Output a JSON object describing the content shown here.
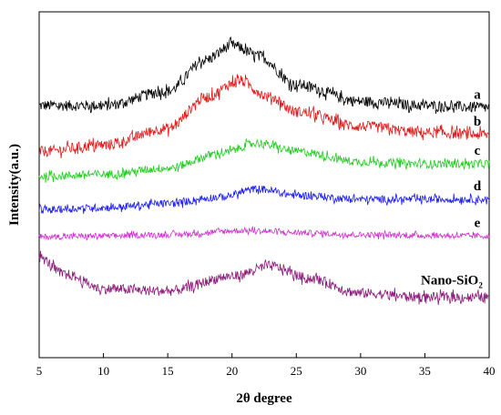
{
  "chart_data": {
    "type": "line",
    "xlabel": "2θ degree",
    "ylabel": "Intensity(a.u.)",
    "xlim": [
      5,
      40
    ],
    "x_ticks": [
      5,
      10,
      15,
      20,
      25,
      30,
      35,
      40
    ],
    "y_ticks_shown": false,
    "grid": false,
    "legend": "labels at right end of each curve",
    "series": [
      {
        "name": "a",
        "color": "#000000",
        "peak_center": 20.0,
        "profile": {
          "x": [
            5,
            10,
            15,
            18,
            20,
            22,
            25,
            30,
            35,
            40
          ],
          "y": [
            4.55,
            4.55,
            4.9,
            5.65,
            6.0,
            5.75,
            5.05,
            4.65,
            4.55,
            4.5
          ]
        }
      },
      {
        "name": "b",
        "color": "#e01b1b",
        "peak_center": 20.5,
        "profile": {
          "x": [
            5,
            10,
            15,
            18,
            20.5,
            23,
            25,
            30,
            35,
            40
          ],
          "y": [
            3.45,
            3.6,
            4.0,
            4.75,
            5.15,
            4.75,
            4.4,
            4.05,
            3.9,
            3.85
          ]
        }
      },
      {
        "name": "c",
        "color": "#22cc22",
        "peak_center": 22.0,
        "profile": {
          "x": [
            5,
            10,
            15,
            19,
            22,
            25,
            30,
            35,
            40
          ],
          "y": [
            2.85,
            2.9,
            3.05,
            3.4,
            3.65,
            3.45,
            3.2,
            3.15,
            3.15
          ]
        }
      },
      {
        "name": "d",
        "color": "#1a1aff",
        "peak_center": 22.0,
        "profile": {
          "x": [
            5,
            10,
            15,
            19,
            22,
            25,
            30,
            35,
            40
          ],
          "y": [
            2.05,
            2.1,
            2.2,
            2.35,
            2.55,
            2.4,
            2.3,
            2.3,
            2.3
          ]
        }
      },
      {
        "name": "e",
        "color": "#cc33cc",
        "peak_center": 21.0,
        "profile": {
          "x": [
            5,
            10,
            15,
            21,
            25,
            30,
            35,
            40
          ],
          "y": [
            1.4,
            1.42,
            1.45,
            1.55,
            1.5,
            1.45,
            1.43,
            1.42
          ]
        }
      },
      {
        "name": "Nano-SiO2",
        "label_main": "Nano-SiO",
        "label_sub": "2",
        "color": "#8b1a7a",
        "peak_center": 23.0,
        "profile": {
          "x": [
            5,
            7,
            10,
            15,
            20,
            23,
            26,
            30,
            35,
            40
          ],
          "y": [
            0.9,
            0.5,
            0.15,
            0.1,
            0.45,
            0.7,
            0.4,
            0.05,
            -0.05,
            -0.05
          ]
        }
      }
    ],
    "y_range_units": [
      -1.5,
      6.8
    ]
  }
}
